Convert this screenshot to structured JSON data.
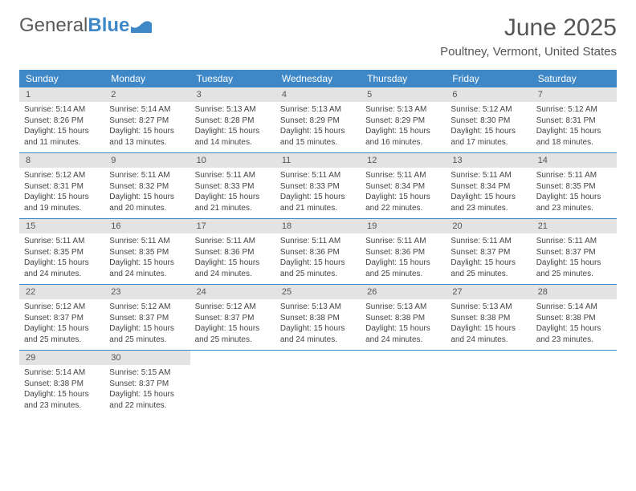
{
  "brand": {
    "part1": "General",
    "part2": "Blue"
  },
  "title": "June 2025",
  "location": "Poultney, Vermont, United States",
  "colors": {
    "header_bg": "#3e88c8",
    "daynum_bg": "#e3e3e3",
    "text": "#444444",
    "rule": "#3e88c8",
    "background": "#ffffff"
  },
  "typography": {
    "base_pt": 10,
    "title_pt": 30,
    "location_pt": 15,
    "dow_pt": 12,
    "daynum_pt": 11
  },
  "days_of_week": [
    "Sunday",
    "Monday",
    "Tuesday",
    "Wednesday",
    "Thursday",
    "Friday",
    "Saturday"
  ],
  "weeks": [
    [
      {
        "n": "1",
        "sr": "Sunrise: 5:14 AM",
        "ss": "Sunset: 8:26 PM",
        "d1": "Daylight: 15 hours",
        "d2": "and 11 minutes."
      },
      {
        "n": "2",
        "sr": "Sunrise: 5:14 AM",
        "ss": "Sunset: 8:27 PM",
        "d1": "Daylight: 15 hours",
        "d2": "and 13 minutes."
      },
      {
        "n": "3",
        "sr": "Sunrise: 5:13 AM",
        "ss": "Sunset: 8:28 PM",
        "d1": "Daylight: 15 hours",
        "d2": "and 14 minutes."
      },
      {
        "n": "4",
        "sr": "Sunrise: 5:13 AM",
        "ss": "Sunset: 8:29 PM",
        "d1": "Daylight: 15 hours",
        "d2": "and 15 minutes."
      },
      {
        "n": "5",
        "sr": "Sunrise: 5:13 AM",
        "ss": "Sunset: 8:29 PM",
        "d1": "Daylight: 15 hours",
        "d2": "and 16 minutes."
      },
      {
        "n": "6",
        "sr": "Sunrise: 5:12 AM",
        "ss": "Sunset: 8:30 PM",
        "d1": "Daylight: 15 hours",
        "d2": "and 17 minutes."
      },
      {
        "n": "7",
        "sr": "Sunrise: 5:12 AM",
        "ss": "Sunset: 8:31 PM",
        "d1": "Daylight: 15 hours",
        "d2": "and 18 minutes."
      }
    ],
    [
      {
        "n": "8",
        "sr": "Sunrise: 5:12 AM",
        "ss": "Sunset: 8:31 PM",
        "d1": "Daylight: 15 hours",
        "d2": "and 19 minutes."
      },
      {
        "n": "9",
        "sr": "Sunrise: 5:11 AM",
        "ss": "Sunset: 8:32 PM",
        "d1": "Daylight: 15 hours",
        "d2": "and 20 minutes."
      },
      {
        "n": "10",
        "sr": "Sunrise: 5:11 AM",
        "ss": "Sunset: 8:33 PM",
        "d1": "Daylight: 15 hours",
        "d2": "and 21 minutes."
      },
      {
        "n": "11",
        "sr": "Sunrise: 5:11 AM",
        "ss": "Sunset: 8:33 PM",
        "d1": "Daylight: 15 hours",
        "d2": "and 21 minutes."
      },
      {
        "n": "12",
        "sr": "Sunrise: 5:11 AM",
        "ss": "Sunset: 8:34 PM",
        "d1": "Daylight: 15 hours",
        "d2": "and 22 minutes."
      },
      {
        "n": "13",
        "sr": "Sunrise: 5:11 AM",
        "ss": "Sunset: 8:34 PM",
        "d1": "Daylight: 15 hours",
        "d2": "and 23 minutes."
      },
      {
        "n": "14",
        "sr": "Sunrise: 5:11 AM",
        "ss": "Sunset: 8:35 PM",
        "d1": "Daylight: 15 hours",
        "d2": "and 23 minutes."
      }
    ],
    [
      {
        "n": "15",
        "sr": "Sunrise: 5:11 AM",
        "ss": "Sunset: 8:35 PM",
        "d1": "Daylight: 15 hours",
        "d2": "and 24 minutes."
      },
      {
        "n": "16",
        "sr": "Sunrise: 5:11 AM",
        "ss": "Sunset: 8:35 PM",
        "d1": "Daylight: 15 hours",
        "d2": "and 24 minutes."
      },
      {
        "n": "17",
        "sr": "Sunrise: 5:11 AM",
        "ss": "Sunset: 8:36 PM",
        "d1": "Daylight: 15 hours",
        "d2": "and 24 minutes."
      },
      {
        "n": "18",
        "sr": "Sunrise: 5:11 AM",
        "ss": "Sunset: 8:36 PM",
        "d1": "Daylight: 15 hours",
        "d2": "and 25 minutes."
      },
      {
        "n": "19",
        "sr": "Sunrise: 5:11 AM",
        "ss": "Sunset: 8:36 PM",
        "d1": "Daylight: 15 hours",
        "d2": "and 25 minutes."
      },
      {
        "n": "20",
        "sr": "Sunrise: 5:11 AM",
        "ss": "Sunset: 8:37 PM",
        "d1": "Daylight: 15 hours",
        "d2": "and 25 minutes."
      },
      {
        "n": "21",
        "sr": "Sunrise: 5:11 AM",
        "ss": "Sunset: 8:37 PM",
        "d1": "Daylight: 15 hours",
        "d2": "and 25 minutes."
      }
    ],
    [
      {
        "n": "22",
        "sr": "Sunrise: 5:12 AM",
        "ss": "Sunset: 8:37 PM",
        "d1": "Daylight: 15 hours",
        "d2": "and 25 minutes."
      },
      {
        "n": "23",
        "sr": "Sunrise: 5:12 AM",
        "ss": "Sunset: 8:37 PM",
        "d1": "Daylight: 15 hours",
        "d2": "and 25 minutes."
      },
      {
        "n": "24",
        "sr": "Sunrise: 5:12 AM",
        "ss": "Sunset: 8:37 PM",
        "d1": "Daylight: 15 hours",
        "d2": "and 25 minutes."
      },
      {
        "n": "25",
        "sr": "Sunrise: 5:13 AM",
        "ss": "Sunset: 8:38 PM",
        "d1": "Daylight: 15 hours",
        "d2": "and 24 minutes."
      },
      {
        "n": "26",
        "sr": "Sunrise: 5:13 AM",
        "ss": "Sunset: 8:38 PM",
        "d1": "Daylight: 15 hours",
        "d2": "and 24 minutes."
      },
      {
        "n": "27",
        "sr": "Sunrise: 5:13 AM",
        "ss": "Sunset: 8:38 PM",
        "d1": "Daylight: 15 hours",
        "d2": "and 24 minutes."
      },
      {
        "n": "28",
        "sr": "Sunrise: 5:14 AM",
        "ss": "Sunset: 8:38 PM",
        "d1": "Daylight: 15 hours",
        "d2": "and 23 minutes."
      }
    ],
    [
      {
        "n": "29",
        "sr": "Sunrise: 5:14 AM",
        "ss": "Sunset: 8:38 PM",
        "d1": "Daylight: 15 hours",
        "d2": "and 23 minutes."
      },
      {
        "n": "30",
        "sr": "Sunrise: 5:15 AM",
        "ss": "Sunset: 8:37 PM",
        "d1": "Daylight: 15 hours",
        "d2": "and 22 minutes."
      },
      {
        "empty": true
      },
      {
        "empty": true
      },
      {
        "empty": true
      },
      {
        "empty": true
      },
      {
        "empty": true
      }
    ]
  ]
}
